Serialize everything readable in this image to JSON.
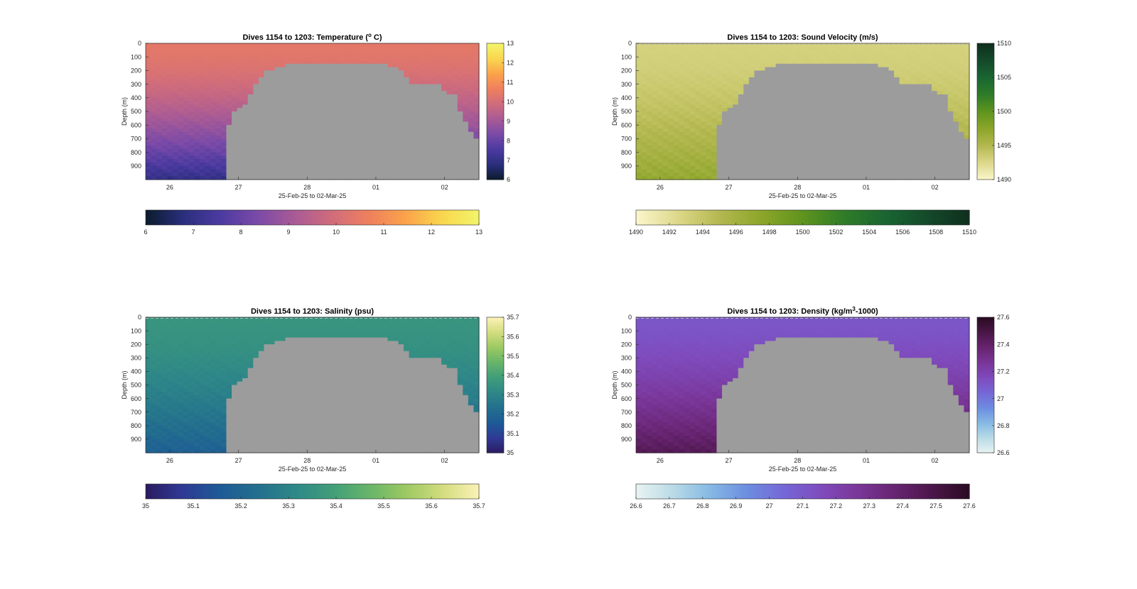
{
  "figure": {
    "time_label": "25-Feb-25 to 02-Mar-25",
    "depth_label": "Depth (m)"
  },
  "common": {
    "depth_ticks": [
      "0",
      "100",
      "200",
      "300",
      "400",
      "500",
      "600",
      "700",
      "800",
      "900"
    ],
    "date_ticks": [
      "26",
      "27",
      "28",
      "01",
      "02"
    ],
    "dive_range": "Dives 1154 to 1203",
    "xlim_days": [
      25.65,
      30.5
    ],
    "ylim_depth": [
      0,
      1000
    ],
    "mask_color": "#9c9c9c"
  },
  "chart_data": [
    {
      "type": "heatmap",
      "key": "temperature",
      "title": "Dives 1154 to 1203: Temperature (°C)",
      "title_html_parts": [
        "Dives 1154 to 1203: Temperature (",
        "o",
        " C)"
      ],
      "xlabel": "25-Feb-25 to 02-Mar-25",
      "ylabel": "Depth (m)",
      "x_ticks": [
        "26",
        "27",
        "28",
        "01",
        "02"
      ],
      "y_ticks": [
        "0",
        "100",
        "200",
        "300",
        "400",
        "500",
        "600",
        "700",
        "800",
        "900"
      ],
      "clim": [
        6,
        13
      ],
      "colorbar_ticks": [
        "6",
        "7",
        "8",
        "9",
        "10",
        "11",
        "12",
        "13"
      ],
      "colormap": [
        "#0b1c2c",
        "#2a2e7c",
        "#4b3aa0",
        "#7a4aa8",
        "#a85a96",
        "#cf6c7c",
        "#ee7f5e",
        "#fba24a",
        "#f9d64e",
        "#f2f56a"
      ],
      "surface_value": 10.4,
      "deep_value": 7.0,
      "nan_value": "gray"
    },
    {
      "type": "heatmap",
      "key": "sound_velocity",
      "title": "Dives 1154 to 1203: Sound Velocity (m/s)",
      "xlabel": "25-Feb-25 to 02-Mar-25",
      "ylabel": "Depth (m)",
      "x_ticks": [
        "26",
        "27",
        "28",
        "01",
        "02"
      ],
      "y_ticks": [
        "0",
        "100",
        "200",
        "300",
        "400",
        "500",
        "600",
        "700",
        "800",
        "900"
      ],
      "clim": [
        1490,
        1510
      ],
      "colorbar_ticks": [
        "1490",
        "1495",
        "1500",
        "1505",
        "1510"
      ],
      "hbar_ticks": [
        "1490",
        "1492",
        "1494",
        "1496",
        "1498",
        "1500",
        "1502",
        "1504",
        "1506",
        "1508",
        "1510"
      ],
      "colormap": [
        "#fbf6cc",
        "#ddd88a",
        "#b4b850",
        "#8ca62a",
        "#5f941e",
        "#2f7c28",
        "#1a6532",
        "#144a2a",
        "#0f2f1e"
      ],
      "surface_value": 1493,
      "deep_value": 1497,
      "nan_value": "gray"
    },
    {
      "type": "heatmap",
      "key": "salinity",
      "title": "Dives 1154 to 1203: Salinity (psu)",
      "xlabel": "25-Feb-25 to 02-Mar-25",
      "ylabel": "Depth (m)",
      "x_ticks": [
        "26",
        "27",
        "28",
        "01",
        "02"
      ],
      "y_ticks": [
        "0",
        "100",
        "200",
        "300",
        "400",
        "500",
        "600",
        "700",
        "800",
        "900"
      ],
      "clim": [
        35,
        35.7
      ],
      "colorbar_ticks": [
        "35",
        "35.1",
        "35.2",
        "35.3",
        "35.4",
        "35.5",
        "35.6",
        "35.7"
      ],
      "colormap": [
        "#2b1b60",
        "#2f3a95",
        "#1d5a96",
        "#236f8e",
        "#2e8788",
        "#3f9d7a",
        "#66b46a",
        "#9bc862",
        "#d2dc7e",
        "#fbf2b6"
      ],
      "surface_value": 35.36,
      "deep_value": 35.18,
      "nan_value": "gray"
    },
    {
      "type": "heatmap",
      "key": "density",
      "title": "Dives 1154 to 1203: Density (kg/m³-1000)",
      "title_html_parts": [
        "Dives 1154 to 1203: Density (kg/m",
        "3",
        "-1000)"
      ],
      "xlabel": "25-Feb-25 to 02-Mar-25",
      "ylabel": "Depth (m)",
      "x_ticks": [
        "26",
        "27",
        "28",
        "01",
        "02"
      ],
      "y_ticks": [
        "0",
        "100",
        "200",
        "300",
        "400",
        "500",
        "600",
        "700",
        "800",
        "900"
      ],
      "clim": [
        26.6,
        27.6
      ],
      "colorbar_ticks": [
        "26.6",
        "26.8",
        "27",
        "27.2",
        "27.4",
        "27.6"
      ],
      "hbar_ticks": [
        "26.6",
        "26.7",
        "26.8",
        "26.9",
        "27",
        "27.1",
        "27.2",
        "27.3",
        "27.4",
        "27.5",
        "27.6"
      ],
      "colormap": [
        "#e9f3f2",
        "#b9dbe6",
        "#86b9e4",
        "#6c8de0",
        "#7667d6",
        "#7f4bbd",
        "#7a3698",
        "#672470",
        "#4b1648",
        "#2a0c22"
      ],
      "surface_value": 27.11,
      "deep_value": 27.45,
      "nan_value": "gray"
    }
  ]
}
